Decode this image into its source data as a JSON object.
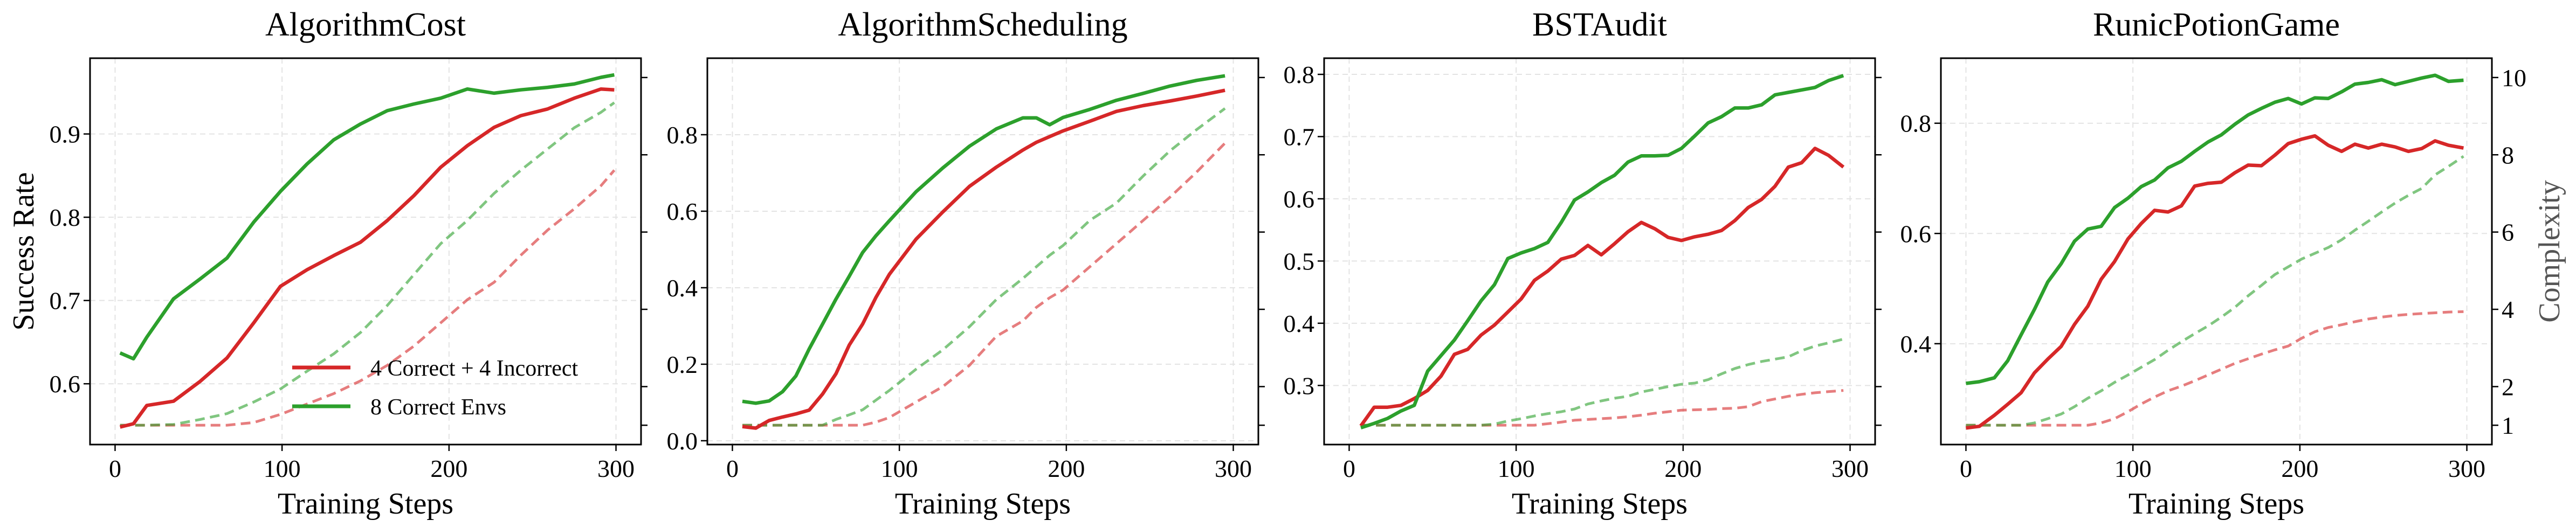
{
  "legend": {
    "placement": "lower-right",
    "panel": 0,
    "entries": [
      {
        "label": "4 Correct + 4 Incorrect",
        "color": "#d62728"
      },
      {
        "label": "8 Correct Envs",
        "color": "#2ca02c"
      }
    ]
  },
  "chart_data": [
    {
      "type": "line",
      "title": "AlgorithmCost",
      "xlabel": "Training Steps",
      "ylabel": "Success Rate",
      "right_ylabel": "",
      "xlim": [
        -15,
        315
      ],
      "xticks": [
        0,
        100,
        200,
        300
      ],
      "ylim": [
        0.527,
        0.991
      ],
      "yticks": [
        0.6,
        0.7,
        0.8,
        0.9
      ],
      "ytick_decimals": 1,
      "right_ylim": [
        0.5,
        10.5
      ],
      "right_yticks": [
        1,
        2,
        4,
        6,
        8,
        10
      ],
      "right_tick_labels_shown": false,
      "grid": true,
      "x": [
        3,
        11,
        19,
        35,
        51,
        67,
        83,
        99,
        115,
        131,
        147,
        163,
        179,
        195,
        211,
        227,
        243,
        259,
        275,
        291,
        299
      ],
      "series": [
        {
          "name": "4 Correct + 4 Incorrect",
          "axis": "left",
          "style": "solid",
          "color": "#d62728",
          "values": [
            0.548,
            0.552,
            0.574,
            0.579,
            0.603,
            0.631,
            0.673,
            0.717,
            0.737,
            0.754,
            0.77,
            0.796,
            0.826,
            0.86,
            0.886,
            0.908,
            0.922,
            0.93,
            0.943,
            0.954,
            0.953
          ]
        },
        {
          "name": "8 Correct Envs",
          "axis": "left",
          "style": "solid",
          "color": "#2ca02c",
          "values": [
            0.637,
            0.63,
            0.656,
            0.702,
            0.726,
            0.751,
            0.794,
            0.831,
            0.864,
            0.893,
            0.912,
            0.928,
            0.936,
            0.943,
            0.954,
            0.949,
            0.953,
            0.956,
            0.96,
            0.968,
            0.971
          ]
        },
        {
          "axis": "right",
          "style": "dashed",
          "color": "#d62728",
          "values": [
            1,
            1,
            1,
            1,
            1,
            1,
            1.07,
            1.28,
            1.55,
            1.82,
            2.15,
            2.55,
            3.05,
            3.65,
            4.25,
            4.7,
            5.4,
            6.05,
            6.6,
            7.2,
            7.6
          ]
        },
        {
          "axis": "right",
          "style": "dashed",
          "color": "#2ca02c",
          "values": [
            1,
            1,
            1,
            1.02,
            1.15,
            1.3,
            1.6,
            1.94,
            2.4,
            2.85,
            3.4,
            4.1,
            4.9,
            5.7,
            6.3,
            7.0,
            7.6,
            8.15,
            8.7,
            9.1,
            9.35
          ]
        }
      ]
    },
    {
      "type": "line",
      "title": "AlgorithmScheduling",
      "xlabel": "Training Steps",
      "ylabel": "",
      "right_ylabel": "",
      "xlim": [
        -15,
        315
      ],
      "xticks": [
        0,
        100,
        200,
        300
      ],
      "ylim": [
        -0.01,
        1.0
      ],
      "yticks": [
        0.0,
        0.2,
        0.4,
        0.6,
        0.8
      ],
      "ytick_decimals": 1,
      "right_ylim": [
        0.5,
        10.5
      ],
      "right_yticks": [
        1,
        2,
        4,
        6,
        8,
        10
      ],
      "right_tick_labels_shown": false,
      "grid": true,
      "x": [
        6,
        14,
        22,
        30,
        38,
        46,
        54,
        62,
        70,
        78,
        86,
        94,
        110,
        126,
        142,
        158,
        174,
        182,
        190,
        198,
        214,
        230,
        246,
        262,
        278,
        295
      ],
      "series": [
        {
          "name": "4 Correct + 4 Incorrect",
          "axis": "left",
          "style": "solid",
          "color": "#d62728",
          "values": [
            0.037,
            0.033,
            0.053,
            0.062,
            0.07,
            0.08,
            0.122,
            0.175,
            0.25,
            0.305,
            0.375,
            0.435,
            0.527,
            0.598,
            0.665,
            0.715,
            0.76,
            0.78,
            0.795,
            0.81,
            0.835,
            0.861,
            0.876,
            0.888,
            0.901,
            0.916
          ]
        },
        {
          "name": "8 Correct Envs",
          "axis": "left",
          "style": "solid",
          "color": "#2ca02c",
          "values": [
            0.103,
            0.098,
            0.104,
            0.128,
            0.169,
            0.24,
            0.305,
            0.37,
            0.43,
            0.492,
            0.536,
            0.575,
            0.651,
            0.713,
            0.77,
            0.815,
            0.844,
            0.844,
            0.826,
            0.845,
            0.866,
            0.89,
            0.908,
            0.927,
            0.942,
            0.954
          ]
        },
        {
          "axis": "right",
          "style": "dashed",
          "color": "#d62728",
          "values": [
            1,
            1,
            1,
            1,
            1,
            1,
            1,
            1,
            1,
            1,
            1.08,
            1.2,
            1.6,
            2.0,
            2.55,
            3.3,
            3.7,
            4.05,
            4.3,
            4.5,
            5.1,
            5.7,
            6.3,
            6.9,
            7.55,
            8.3
          ]
        },
        {
          "axis": "right",
          "style": "dashed",
          "color": "#2ca02c",
          "values": [
            1,
            1,
            1,
            1,
            1,
            1,
            1,
            1.15,
            1.27,
            1.4,
            1.65,
            1.9,
            2.45,
            2.95,
            3.55,
            4.25,
            4.8,
            5.1,
            5.4,
            5.65,
            6.3,
            6.75,
            7.45,
            8.1,
            8.65,
            9.2
          ]
        }
      ]
    },
    {
      "type": "line",
      "title": "BSTAudit",
      "xlabel": "Training Steps",
      "ylabel": "",
      "right_ylabel": "",
      "xlim": [
        -15,
        315
      ],
      "xticks": [
        0,
        100,
        200,
        300
      ],
      "ylim": [
        0.205,
        0.826
      ],
      "yticks": [
        0.3,
        0.4,
        0.5,
        0.6,
        0.7,
        0.8
      ],
      "ytick_decimals": 1,
      "right_ylim": [
        0.5,
        10.5
      ],
      "right_yticks": [
        1,
        2,
        4,
        6,
        8,
        10
      ],
      "right_tick_labels_shown": false,
      "grid": true,
      "x": [
        7,
        15,
        23,
        31,
        39,
        47,
        55,
        63,
        71,
        79,
        87,
        95,
        103,
        111,
        119,
        127,
        135,
        143,
        151,
        159,
        167,
        175,
        183,
        191,
        199,
        207,
        215,
        223,
        231,
        239,
        247,
        255,
        263,
        271,
        279,
        287,
        296
      ],
      "series": [
        {
          "name": "4 Correct + 4 Incorrect",
          "axis": "left",
          "style": "solid",
          "color": "#d62728",
          "values": [
            0.235,
            0.265,
            0.265,
            0.268,
            0.279,
            0.292,
            0.315,
            0.35,
            0.358,
            0.381,
            0.397,
            0.418,
            0.439,
            0.469,
            0.484,
            0.503,
            0.509,
            0.525,
            0.51,
            0.528,
            0.547,
            0.562,
            0.552,
            0.538,
            0.533,
            0.539,
            0.543,
            0.549,
            0.565,
            0.586,
            0.599,
            0.62,
            0.651,
            0.658,
            0.681,
            0.67,
            0.651
          ]
        },
        {
          "name": "8 Correct Envs",
          "axis": "left",
          "style": "solid",
          "color": "#2ca02c",
          "values": [
            0.232,
            0.239,
            0.247,
            0.259,
            0.268,
            0.323,
            0.348,
            0.373,
            0.404,
            0.436,
            0.462,
            0.504,
            0.513,
            0.52,
            0.53,
            0.562,
            0.598,
            0.611,
            0.626,
            0.638,
            0.659,
            0.669,
            0.669,
            0.67,
            0.681,
            0.701,
            0.722,
            0.732,
            0.746,
            0.746,
            0.751,
            0.767,
            0.771,
            0.775,
            0.779,
            0.79,
            0.798
          ]
        },
        {
          "axis": "right",
          "style": "dashed",
          "color": "#d62728",
          "values": [
            1,
            1,
            1,
            1,
            1,
            1,
            1,
            1,
            1,
            1,
            1,
            1,
            1,
            1,
            1.04,
            1.08,
            1.13,
            1.15,
            1.17,
            1.19,
            1.22,
            1.26,
            1.31,
            1.35,
            1.39,
            1.4,
            1.41,
            1.43,
            1.44,
            1.48,
            1.61,
            1.68,
            1.75,
            1.8,
            1.84,
            1.87,
            1.9
          ]
        },
        {
          "axis": "right",
          "style": "dashed",
          "color": "#2ca02c",
          "values": [
            1,
            1,
            1,
            1,
            1,
            1,
            1,
            1,
            1,
            1,
            1.03,
            1.11,
            1.17,
            1.24,
            1.3,
            1.35,
            1.42,
            1.55,
            1.63,
            1.7,
            1.75,
            1.86,
            1.93,
            2.0,
            2.06,
            2.09,
            2.18,
            2.33,
            2.47,
            2.57,
            2.65,
            2.71,
            2.77,
            2.93,
            3.05,
            3.13,
            3.23
          ]
        }
      ]
    },
    {
      "type": "line",
      "title": "RunicPotionGame",
      "xlabel": "Training Steps",
      "ylabel": "",
      "right_ylabel": "Complexity",
      "xlim": [
        -15,
        315
      ],
      "xticks": [
        0,
        100,
        200,
        300
      ],
      "ylim": [
        0.217,
        0.918
      ],
      "yticks": [
        0.4,
        0.6,
        0.8
      ],
      "ytick_decimals": 1,
      "right_ylim": [
        0.5,
        10.5
      ],
      "right_yticks": [
        1,
        2,
        4,
        6,
        8,
        10
      ],
      "right_tick_labels_shown": true,
      "grid": true,
      "x": [
        0,
        8,
        17,
        25,
        33,
        41,
        49,
        57,
        65,
        73,
        81,
        89,
        97,
        105,
        113,
        121,
        129,
        137,
        145,
        153,
        161,
        169,
        177,
        185,
        193,
        201,
        209,
        217,
        225,
        233,
        241,
        249,
        257,
        265,
        273,
        281,
        289,
        298
      ],
      "series": [
        {
          "name": "4 Correct + 4 Incorrect",
          "axis": "left",
          "style": "solid",
          "color": "#d62728",
          "values": [
            0.247,
            0.25,
            0.27,
            0.29,
            0.311,
            0.347,
            0.372,
            0.395,
            0.435,
            0.468,
            0.517,
            0.549,
            0.59,
            0.618,
            0.642,
            0.639,
            0.65,
            0.686,
            0.691,
            0.693,
            0.71,
            0.724,
            0.723,
            0.742,
            0.763,
            0.771,
            0.777,
            0.76,
            0.749,
            0.762,
            0.755,
            0.762,
            0.757,
            0.749,
            0.754,
            0.768,
            0.76,
            0.755
          ]
        },
        {
          "name": "8 Correct Envs",
          "axis": "left",
          "style": "solid",
          "color": "#2ca02c",
          "values": [
            0.328,
            0.331,
            0.338,
            0.369,
            0.416,
            0.462,
            0.512,
            0.545,
            0.586,
            0.608,
            0.613,
            0.647,
            0.664,
            0.685,
            0.697,
            0.719,
            0.731,
            0.749,
            0.766,
            0.779,
            0.798,
            0.815,
            0.827,
            0.838,
            0.845,
            0.835,
            0.846,
            0.845,
            0.857,
            0.871,
            0.874,
            0.879,
            0.87,
            0.876,
            0.882,
            0.887,
            0.876,
            0.878
          ]
        },
        {
          "axis": "right",
          "style": "dashed",
          "color": "#d62728",
          "values": [
            1,
            1,
            1,
            1,
            1,
            1,
            1,
            1,
            1,
            1,
            1.06,
            1.17,
            1.35,
            1.55,
            1.73,
            1.89,
            2.01,
            2.15,
            2.3,
            2.45,
            2.6,
            2.72,
            2.84,
            2.95,
            3.05,
            3.25,
            3.42,
            3.53,
            3.6,
            3.68,
            3.75,
            3.8,
            3.84,
            3.87,
            3.89,
            3.91,
            3.93,
            3.94
          ]
        },
        {
          "axis": "right",
          "style": "dashed",
          "color": "#2ca02c",
          "values": [
            1,
            1,
            1,
            1,
            1,
            1.06,
            1.17,
            1.29,
            1.48,
            1.7,
            1.89,
            2.11,
            2.3,
            2.5,
            2.7,
            2.94,
            3.16,
            3.37,
            3.57,
            3.8,
            4.05,
            4.35,
            4.62,
            4.9,
            5.1,
            5.3,
            5.45,
            5.6,
            5.8,
            6.05,
            6.28,
            6.52,
            6.75,
            6.95,
            7.13,
            7.48,
            7.7,
            7.96
          ]
        }
      ]
    }
  ]
}
